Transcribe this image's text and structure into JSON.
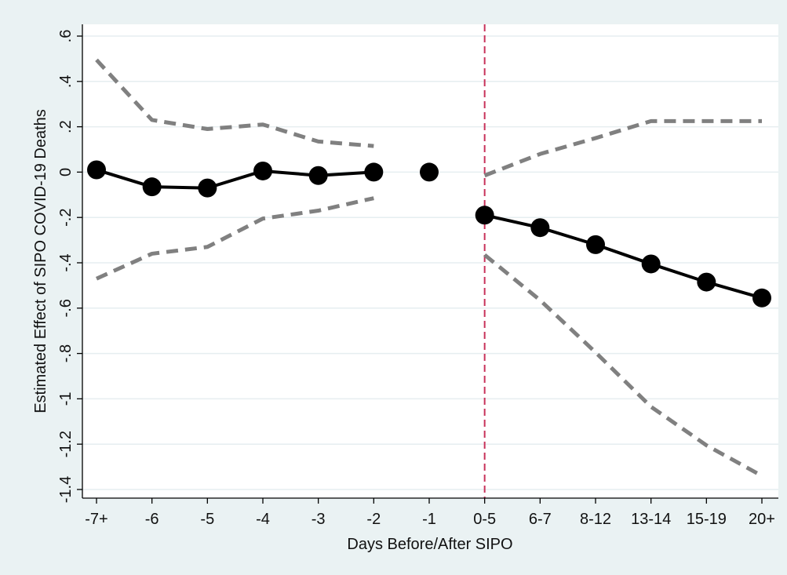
{
  "chart_data": {
    "type": "line",
    "title": "",
    "xlabel": "Days Before/After SIPO",
    "ylabel": "Estimated Effect of SIPO COVID-19 Deaths",
    "categories": [
      "-7+",
      "-6",
      "-5",
      "-4",
      "-3",
      "-2",
      "-1",
      "0-5",
      "6-7",
      "8-12",
      "13-14",
      "15-19",
      "20+"
    ],
    "ylim": [
      -1.4,
      0.6
    ],
    "yticks": [
      {
        "value": 0.6,
        "label": ".6"
      },
      {
        "value": 0.4,
        "label": ".4"
      },
      {
        "value": 0.2,
        "label": ".2"
      },
      {
        "value": 0.0,
        "label": "0"
      },
      {
        "value": -0.2,
        "label": "-.2"
      },
      {
        "value": -0.4,
        "label": "-.4"
      },
      {
        "value": -0.6,
        "label": "-.6"
      },
      {
        "value": -0.8,
        "label": "-.8"
      },
      {
        "value": -1.0,
        "label": "-1"
      },
      {
        "value": -1.2,
        "label": "-1.2"
      },
      {
        "value": -1.4,
        "label": "-1.4"
      }
    ],
    "grid": true,
    "reference_line": {
      "category": "0-5",
      "color": "#c8325a",
      "style": "dashed"
    },
    "series": [
      {
        "role": "estimate",
        "color": "#000000",
        "style": "solid-with-markers",
        "segments": [
          [
            {
              "x": "-7+",
              "y": 0.01
            },
            {
              "x": "-6",
              "y": -0.065
            },
            {
              "x": "-5",
              "y": -0.07
            },
            {
              "x": "-4",
              "y": 0.005
            },
            {
              "x": "-3",
              "y": -0.015
            },
            {
              "x": "-2",
              "y": 0.0
            }
          ],
          [
            {
              "x": "-1",
              "y": 0.0
            }
          ],
          [
            {
              "x": "0-5",
              "y": -0.19
            },
            {
              "x": "6-7",
              "y": -0.245
            },
            {
              "x": "8-12",
              "y": -0.32
            },
            {
              "x": "13-14",
              "y": -0.405
            },
            {
              "x": "15-19",
              "y": -0.485
            },
            {
              "x": "20+",
              "y": -0.555
            }
          ]
        ]
      },
      {
        "role": "upper-ci",
        "color": "#808080",
        "style": "dashed",
        "segments": [
          [
            {
              "x": "-7+",
              "y": 0.495
            },
            {
              "x": "-6",
              "y": 0.23
            },
            {
              "x": "-5",
              "y": 0.19
            },
            {
              "x": "-4",
              "y": 0.21
            },
            {
              "x": "-3",
              "y": 0.135
            },
            {
              "x": "-2",
              "y": 0.115
            }
          ],
          [
            {
              "x": "0-5",
              "y": -0.015
            },
            {
              "x": "6-7",
              "y": 0.08
            },
            {
              "x": "8-12",
              "y": 0.15
            },
            {
              "x": "13-14",
              "y": 0.225
            },
            {
              "x": "15-19",
              "y": 0.225
            },
            {
              "x": "20+",
              "y": 0.225
            }
          ]
        ]
      },
      {
        "role": "lower-ci",
        "color": "#808080",
        "style": "dashed",
        "segments": [
          [
            {
              "x": "-7+",
              "y": -0.47
            },
            {
              "x": "-6",
              "y": -0.36
            },
            {
              "x": "-5",
              "y": -0.33
            },
            {
              "x": "-4",
              "y": -0.205
            },
            {
              "x": "-3",
              "y": -0.17
            },
            {
              "x": "-2",
              "y": -0.115
            }
          ],
          [
            {
              "x": "0-5",
              "y": -0.365
            },
            {
              "x": "6-7",
              "y": -0.565
            },
            {
              "x": "8-12",
              "y": -0.795
            },
            {
              "x": "13-14",
              "y": -1.035
            },
            {
              "x": "15-19",
              "y": -1.205
            },
            {
              "x": "20+",
              "y": -1.34
            }
          ]
        ]
      }
    ]
  }
}
